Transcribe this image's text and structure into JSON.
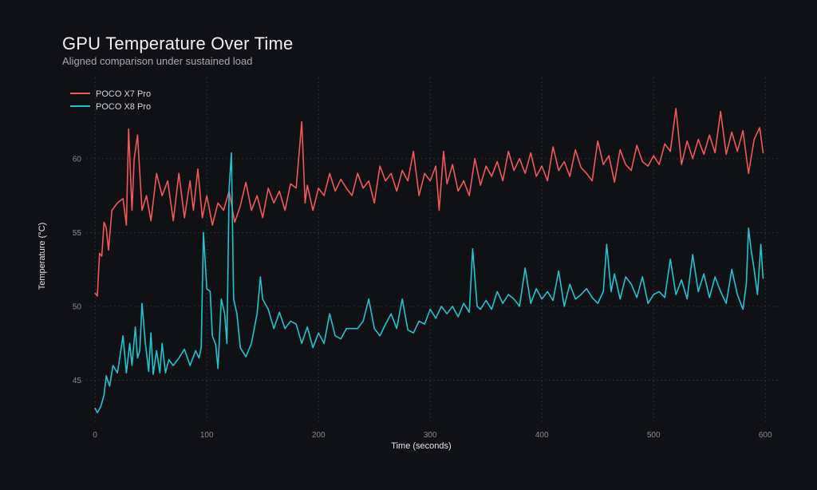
{
  "chart_data": {
    "type": "line",
    "title": "GPU Temperature Over Time",
    "subtitle": "Aligned comparison under sustained load",
    "xlabel": "Time (seconds)",
    "ylabel": "Temperature (°C)",
    "xlim": [
      -8,
      612
    ],
    "ylim": [
      42,
      65.5
    ],
    "xticks": [
      0,
      100,
      200,
      300,
      400,
      500,
      600
    ],
    "yticks": [
      45,
      50,
      55,
      60
    ],
    "grid": true,
    "legend_position": "top-left",
    "series": [
      {
        "name": "POCO X7 Pro",
        "color": "#f0585b",
        "x": [
          0,
          2,
          4,
          6,
          8,
          10,
          12,
          15,
          20,
          25,
          28,
          30,
          33,
          35,
          38,
          42,
          46,
          50,
          55,
          60,
          65,
          70,
          75,
          80,
          85,
          88,
          92,
          96,
          100,
          105,
          110,
          115,
          120,
          125,
          130,
          135,
          140,
          145,
          150,
          155,
          160,
          165,
          170,
          175,
          180,
          185,
          188,
          190,
          195,
          200,
          205,
          210,
          215,
          220,
          225,
          230,
          235,
          240,
          245,
          250,
          255,
          260,
          265,
          270,
          275,
          280,
          285,
          290,
          295,
          300,
          305,
          308,
          312,
          315,
          320,
          325,
          330,
          335,
          340,
          345,
          350,
          355,
          360,
          365,
          370,
          375,
          380,
          385,
          390,
          395,
          400,
          405,
          410,
          415,
          420,
          425,
          430,
          435,
          440,
          445,
          450,
          455,
          460,
          465,
          470,
          475,
          480,
          485,
          490,
          495,
          500,
          505,
          510,
          515,
          520,
          525,
          530,
          535,
          540,
          545,
          550,
          555,
          560,
          565,
          570,
          575,
          580,
          585,
          590,
          595,
          598
        ],
        "values": [
          50.9,
          50.7,
          53.6,
          53.4,
          55.7,
          55.3,
          53.8,
          56.5,
          57.0,
          57.3,
          55.5,
          62.0,
          56.5,
          60.0,
          61.6,
          56.5,
          57.5,
          55.8,
          59.0,
          57.5,
          58.5,
          55.8,
          59.0,
          56.0,
          58.5,
          56.5,
          59.3,
          56.0,
          57.5,
          55.5,
          57.0,
          56.5,
          57.8,
          55.7,
          56.8,
          58.4,
          56.5,
          57.5,
          56.0,
          58.0,
          57.0,
          57.8,
          56.5,
          58.3,
          58.0,
          62.5,
          57.0,
          58.2,
          56.5,
          58.0,
          57.5,
          59.0,
          57.8,
          58.6,
          58.0,
          57.5,
          59.0,
          58.0,
          58.5,
          57.0,
          59.5,
          58.5,
          59.0,
          57.8,
          59.2,
          58.5,
          60.5,
          57.5,
          59.0,
          58.5,
          59.5,
          56.5,
          60.5,
          58.3,
          59.6,
          57.8,
          58.5,
          57.5,
          60.0,
          58.2,
          59.5,
          58.8,
          59.8,
          58.5,
          60.5,
          59.2,
          60.0,
          59.0,
          60.4,
          58.8,
          59.5,
          58.5,
          60.8,
          59.2,
          59.8,
          58.8,
          60.6,
          59.4,
          59.0,
          58.5,
          61.2,
          59.6,
          60.2,
          58.4,
          60.6,
          59.6,
          59.2,
          60.9,
          59.8,
          59.5,
          60.2,
          59.6,
          61.0,
          60.5,
          63.4,
          59.6,
          61.2,
          60.0,
          61.3,
          60.3,
          61.6,
          60.4,
          63.2,
          60.3,
          61.8,
          60.5,
          61.9,
          59.0,
          61.3,
          62.1,
          60.4
        ]
      },
      {
        "name": "POCO X8 Pro",
        "color": "#22c4cc",
        "x": [
          0,
          2,
          5,
          8,
          10,
          13,
          16,
          20,
          23,
          25,
          28,
          31,
          33,
          36,
          38,
          40,
          42,
          45,
          48,
          50,
          52,
          55,
          58,
          60,
          63,
          66,
          70,
          75,
          80,
          85,
          90,
          93,
          95,
          97,
          100,
          103,
          105,
          108,
          110,
          113,
          116,
          118,
          120,
          122,
          124,
          127,
          130,
          135,
          140,
          145,
          148,
          150,
          155,
          160,
          165,
          170,
          175,
          180,
          185,
          190,
          195,
          200,
          205,
          210,
          215,
          220,
          225,
          230,
          235,
          240,
          245,
          250,
          255,
          260,
          265,
          270,
          275,
          280,
          285,
          290,
          295,
          300,
          305,
          310,
          315,
          320,
          325,
          330,
          335,
          338,
          342,
          345,
          350,
          355,
          360,
          365,
          370,
          375,
          380,
          385,
          390,
          395,
          400,
          405,
          410,
          415,
          420,
          425,
          430,
          435,
          440,
          445,
          450,
          455,
          458,
          462,
          465,
          470,
          475,
          480,
          485,
          490,
          495,
          500,
          505,
          510,
          515,
          520,
          525,
          530,
          535,
          540,
          545,
          550,
          555,
          560,
          565,
          570,
          575,
          580,
          583,
          585,
          587,
          590,
          593,
          596,
          598
        ],
        "values": [
          43.1,
          42.8,
          43.2,
          44.0,
          45.3,
          44.6,
          46.0,
          45.5,
          47.0,
          48.0,
          45.5,
          47.5,
          46.0,
          48.6,
          46.5,
          47.0,
          50.2,
          47.5,
          45.6,
          48.2,
          45.4,
          47.0,
          45.5,
          47.5,
          45.5,
          46.4,
          46.0,
          46.5,
          47.1,
          46.0,
          47.0,
          46.5,
          47.2,
          55.0,
          51.2,
          51.0,
          48.0,
          47.4,
          45.8,
          50.5,
          49.5,
          47.5,
          58.0,
          60.4,
          50.5,
          49.5,
          47.2,
          46.6,
          47.5,
          49.5,
          52.0,
          50.5,
          49.8,
          48.5,
          49.6,
          48.5,
          49.0,
          48.8,
          47.5,
          48.6,
          47.2,
          48.2,
          47.5,
          49.5,
          48.0,
          47.8,
          48.5,
          48.5,
          48.5,
          49.0,
          50.5,
          48.5,
          48.0,
          48.8,
          49.5,
          48.5,
          50.5,
          48.4,
          48.2,
          49.0,
          48.8,
          49.8,
          49.2,
          50.0,
          49.5,
          50.0,
          49.3,
          50.2,
          49.6,
          53.9,
          50.0,
          49.8,
          50.4,
          49.8,
          51.0,
          50.2,
          50.8,
          50.5,
          50.0,
          52.6,
          50.2,
          51.2,
          50.5,
          51.0,
          50.4,
          52.4,
          50.0,
          51.5,
          50.5,
          50.8,
          51.2,
          50.6,
          50.2,
          51.0,
          54.2,
          51.0,
          52.2,
          50.5,
          52.0,
          51.5,
          50.6,
          52.0,
          50.2,
          50.8,
          51.0,
          50.6,
          53.2,
          50.8,
          51.8,
          50.5,
          53.5,
          51.0,
          52.2,
          50.6,
          52.0,
          51.0,
          50.2,
          52.5,
          50.8,
          49.8,
          51.5,
          55.3,
          54.0,
          52.5,
          50.8,
          54.2,
          51.9
        ]
      }
    ]
  }
}
